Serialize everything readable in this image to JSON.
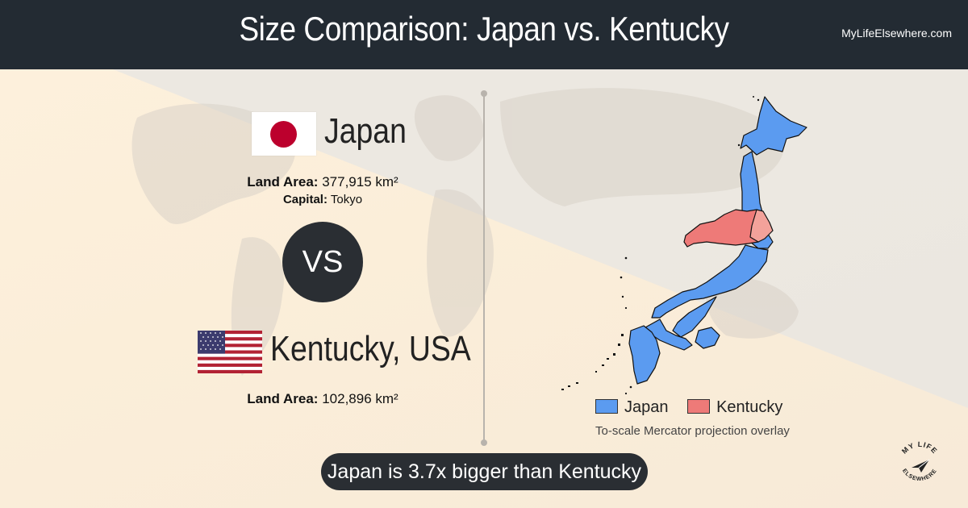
{
  "header": {
    "title": "Size Comparison: Japan vs. Kentucky",
    "site": "MyLifeElsewhere.com"
  },
  "country_a": {
    "name": "Japan",
    "area_label": "Land Area:",
    "area_value": "377,915 km²",
    "capital_label": "Capital:",
    "capital_value": "Tokyo"
  },
  "vs_label": "VS",
  "country_b": {
    "name": "Kentucky, USA",
    "area_label": "Land Area:",
    "area_value": "102,896 km²"
  },
  "legend": {
    "a_label": "Japan",
    "b_label": "Kentucky",
    "a_color": "#5b9bf0",
    "b_color": "#ee7a78",
    "caption": "To-scale Mercator projection overlay"
  },
  "verdict": "Japan is 3.7x bigger than Kentucky",
  "logo": {
    "text_top": "MY LIFE",
    "text_bottom": "ELSEWHERE"
  },
  "icons": {
    "flag_a": "japan-flag-icon",
    "flag_b": "usa-flag-icon",
    "logo": "paper-plane-logo-icon"
  }
}
